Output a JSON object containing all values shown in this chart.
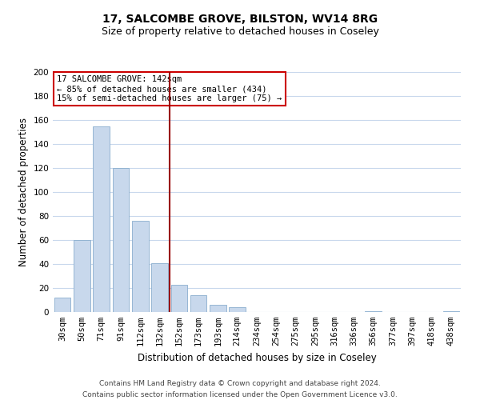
{
  "title": "17, SALCOMBE GROVE, BILSTON, WV14 8RG",
  "subtitle": "Size of property relative to detached houses in Coseley",
  "xlabel": "Distribution of detached houses by size in Coseley",
  "ylabel": "Number of detached properties",
  "bar_color": "#c8d8ec",
  "bar_edge_color": "#8aaece",
  "background_color": "#ffffff",
  "grid_color": "#c8d8ec",
  "categories": [
    "30sqm",
    "50sqm",
    "71sqm",
    "91sqm",
    "112sqm",
    "132sqm",
    "152sqm",
    "173sqm",
    "193sqm",
    "214sqm",
    "234sqm",
    "254sqm",
    "275sqm",
    "295sqm",
    "316sqm",
    "336sqm",
    "356sqm",
    "377sqm",
    "397sqm",
    "418sqm",
    "438sqm"
  ],
  "values": [
    12,
    60,
    155,
    120,
    76,
    41,
    23,
    14,
    6,
    4,
    0,
    0,
    0,
    0,
    0,
    0,
    1,
    0,
    0,
    0,
    1
  ],
  "ylim": [
    0,
    200
  ],
  "yticks": [
    0,
    20,
    40,
    60,
    80,
    100,
    120,
    140,
    160,
    180,
    200
  ],
  "vline_x": 5.5,
  "vline_color": "#990000",
  "annotation_title": "17 SALCOMBE GROVE: 142sqm",
  "annotation_line1": "← 85% of detached houses are smaller (434)",
  "annotation_line2": "15% of semi-detached houses are larger (75) →",
  "annotation_box_color": "#ffffff",
  "annotation_box_edge_color": "#cc0000",
  "footer_line1": "Contains HM Land Registry data © Crown copyright and database right 2024.",
  "footer_line2": "Contains public sector information licensed under the Open Government Licence v3.0.",
  "title_fontsize": 10,
  "subtitle_fontsize": 9,
  "xlabel_fontsize": 8.5,
  "ylabel_fontsize": 8.5,
  "tick_fontsize": 7.5,
  "annotation_fontsize": 7.5,
  "footer_fontsize": 6.5
}
